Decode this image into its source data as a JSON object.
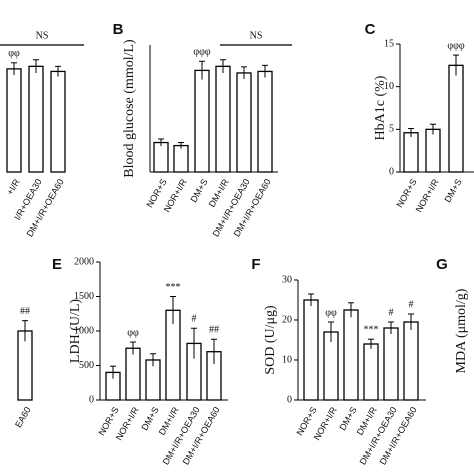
{
  "chart_data": [
    {
      "type": "bar",
      "categories": [
        "+I/R",
        "I/R+OEA30",
        "DM+I/R+OEA60"
      ],
      "values": [
        20.3,
        20.8,
        19.8
      ],
      "errors": [
        1.2,
        1.3,
        1.0
      ],
      "ylim": [
        0,
        25
      ],
      "bracket_label": "NS",
      "annotations": [
        {
          "text": "φφ",
          "index": 0
        }
      ]
    },
    {
      "type": "bar",
      "panel": "B",
      "ylabel": "Blood glucose (mmol/L)",
      "categories": [
        "NOR+S",
        "NOR+I/R",
        "DM+S",
        "DM+I/R",
        "DM+I/R+OEA30",
        "DM+I/R+OEA60"
      ],
      "values": [
        5.8,
        5.2,
        20,
        20.8,
        19.5,
        19.8
      ],
      "errors": [
        0.7,
        0.6,
        1.8,
        1.3,
        1.2,
        1.2
      ],
      "ylim": [
        0,
        25
      ],
      "bracket_label": "NS",
      "annotations": [
        {
          "text": "φφφ",
          "index": 2
        }
      ]
    },
    {
      "type": "bar",
      "panel": "C",
      "ylabel": "HbA1c (%)",
      "categories": [
        "NOR+S",
        "NOR+I/R",
        "DM+S"
      ],
      "values": [
        4.6,
        5,
        12.5
      ],
      "errors": [
        0.5,
        0.6,
        1.2
      ],
      "ylim": [
        0,
        15
      ],
      "yticks": [
        0,
        5,
        10,
        15
      ],
      "annotations": [
        {
          "text": "φφφ",
          "index": 2
        }
      ]
    },
    {
      "type": "bar",
      "categories": [
        "EA60"
      ],
      "values": [
        1000
      ],
      "errors": [
        150
      ],
      "ylim": [
        0,
        2000
      ],
      "annotations": [
        {
          "text": "##",
          "index": 0
        }
      ]
    },
    {
      "type": "bar",
      "panel": "E",
      "ylabel": "LDH (U/L)",
      "categories": [
        "NOR+S",
        "NOR+I/R",
        "DM+S",
        "DM+I/R",
        "DM+I/R+OEA30",
        "DM+I/R+OEA60"
      ],
      "values": [
        400,
        750,
        580,
        1300,
        820,
        700
      ],
      "errors": [
        90,
        90,
        90,
        200,
        220,
        180
      ],
      "ylim": [
        0,
        2000
      ],
      "yticks": [
        0,
        500,
        1000,
        1500,
        2000
      ],
      "annotations": [
        {
          "text": "φφ",
          "index": 1
        },
        {
          "text": "***",
          "index": 3
        },
        {
          "text": "#",
          "index": 4
        },
        {
          "text": "##",
          "index": 5
        }
      ]
    },
    {
      "type": "bar",
      "panel": "F",
      "ylabel": "SOD (U/μg)",
      "categories": [
        "NOR+S",
        "NOR+I/R",
        "DM+S",
        "DM+I/R",
        "DM+I/R+OEA30",
        "DM+I/R+OEA60"
      ],
      "values": [
        25,
        17,
        22.5,
        14,
        18,
        19.5
      ],
      "errors": [
        1.5,
        2.5,
        1.8,
        1.2,
        1.5,
        2
      ],
      "ylim": [
        0,
        30
      ],
      "yticks": [
        0,
        10,
        20,
        30
      ],
      "annotations": [
        {
          "text": "φφ",
          "index": 1
        },
        {
          "text": "***",
          "index": 3
        },
        {
          "text": "#",
          "index": 4
        },
        {
          "text": "#",
          "index": 5
        }
      ]
    },
    {
      "type": "bar",
      "panel": "G",
      "ylabel": "MDA (μmol/g)",
      "categories": [],
      "values": [],
      "errors": [],
      "ylim": [
        0,
        1
      ]
    }
  ]
}
